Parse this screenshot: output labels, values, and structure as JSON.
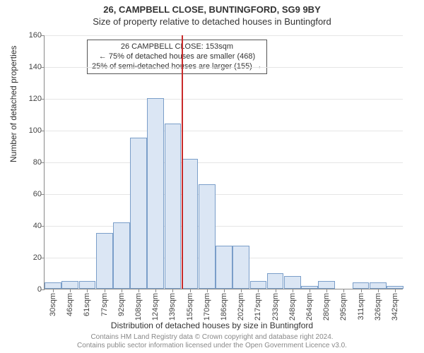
{
  "header": {
    "address_line": "26, CAMPBELL CLOSE, BUNTINGFORD, SG9 9BY",
    "subtitle": "Size of property relative to detached houses in Buntingford"
  },
  "chart": {
    "type": "histogram",
    "ylabel": "Number of detached properties",
    "xlabel": "Distribution of detached houses by size in Buntingford",
    "ylim": [
      0,
      160
    ],
    "ytick_step": 20,
    "grid_color": "#e5e5e5",
    "axis_color": "#888888",
    "background_color": "#ffffff",
    "bar_fill": "#dbe6f4",
    "bar_border": "#7a9ec9",
    "label_fontsize": 12,
    "tick_fontsize": 11,
    "x_categories": [
      "30sqm",
      "46sqm",
      "61sqm",
      "77sqm",
      "92sqm",
      "108sqm",
      "124sqm",
      "139sqm",
      "155sqm",
      "170sqm",
      "186sqm",
      "202sqm",
      "217sqm",
      "233sqm",
      "248sqm",
      "264sqm",
      "280sqm",
      "295sqm",
      "311sqm",
      "326sqm",
      "342sqm"
    ],
    "values": [
      4,
      5,
      5,
      35,
      42,
      95,
      120,
      104,
      82,
      66,
      27,
      27,
      5,
      10,
      8,
      2,
      5,
      0,
      4,
      4,
      2
    ],
    "marker_line": {
      "x_index": 8,
      "color": "#c92a2a",
      "width": 2
    },
    "annotation": {
      "lines": [
        "26 CAMPBELL CLOSE: 153sqm",
        "← 75% of detached houses are smaller (468)",
        "25% of semi-detached houses are larger (155) →"
      ],
      "border_color": "#555555",
      "bg_color": "#ffffff",
      "fontsize": 11
    }
  },
  "footer": {
    "line1": "Contains HM Land Registry data © Crown copyright and database right 2024.",
    "line2": "Contains public sector information licensed under the Open Government Licence v3.0."
  }
}
